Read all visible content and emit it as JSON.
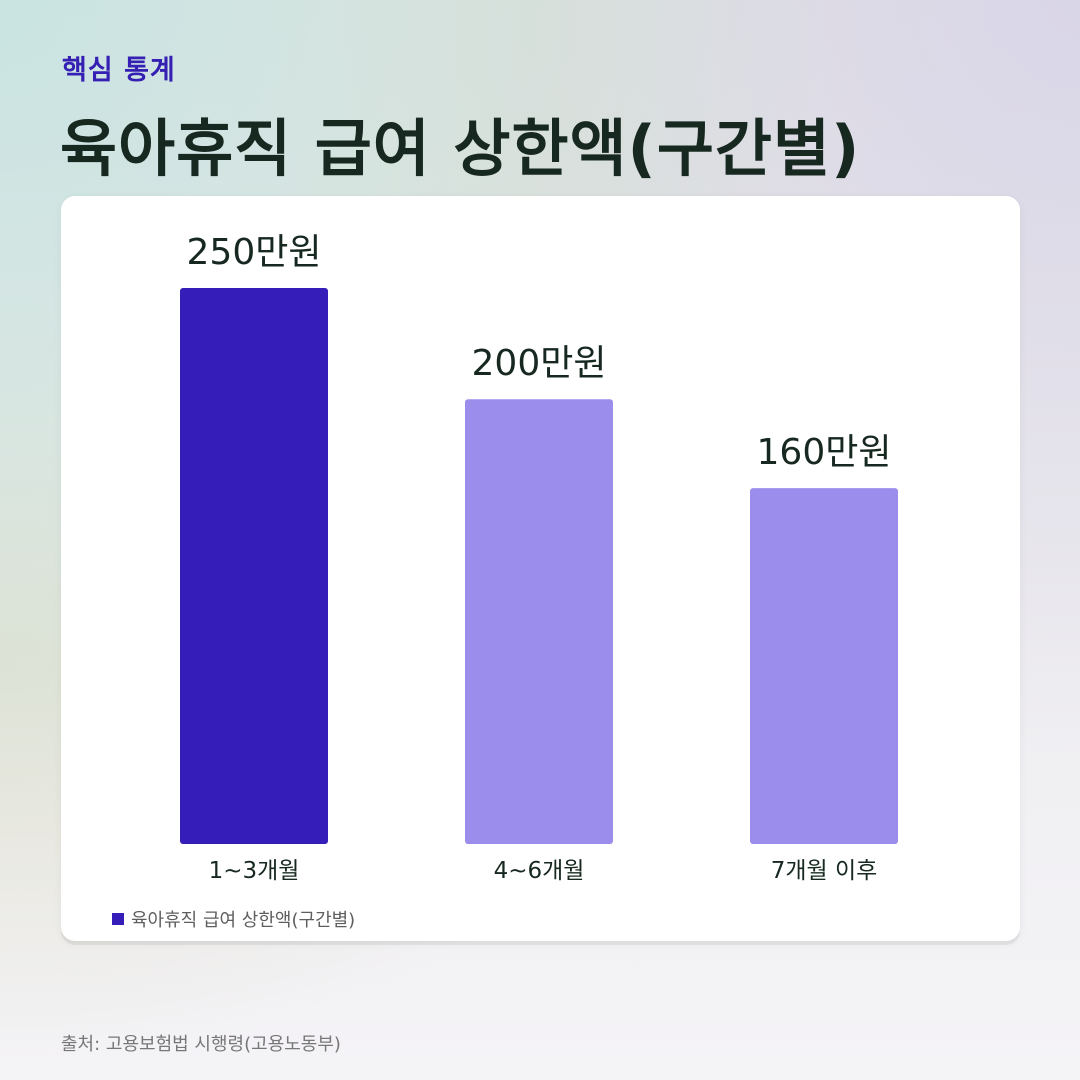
{
  "kicker": "핵심 통계",
  "title": "육아휴직 급여 상한액(구간별)",
  "source": "출처: 고용보험법 시행령(고용노동부)",
  "colors": {
    "highlight": "#341db8",
    "bar": "#9b8deb",
    "text": "#16281f",
    "kicker": "#3520b3"
  },
  "chart_data": {
    "type": "bar",
    "categories": [
      "1~3개월",
      "4~6개월",
      "7개월 이후"
    ],
    "values": [
      250,
      200,
      160
    ],
    "data_labels": [
      "250만원",
      "200만원",
      "160만원"
    ],
    "highlight_index": 0,
    "legend": [
      "육아휴직 급여 상한액(구간별)"
    ],
    "legend_position": "bottom-left",
    "grid": false
  }
}
